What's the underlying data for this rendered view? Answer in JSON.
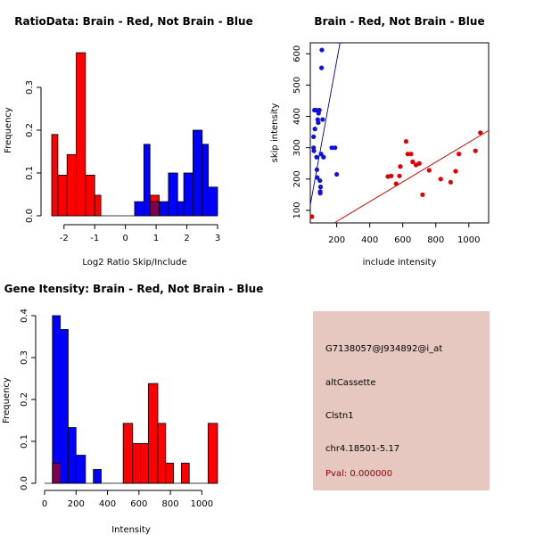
{
  "colors": {
    "red": "#ff0000",
    "blue": "#0000ff",
    "overlap": "#80004d",
    "scatter_red": "#e00000",
    "scatter_blue": "#1010e0",
    "line_red": "#cc0000",
    "line_blue": "#00008b",
    "info_bg": "#e6c8c0",
    "pval": "#8b0000"
  },
  "chart_data": [
    {
      "type": "histogram",
      "title": "RatioData: Brain - Red, Not Brain - Blue",
      "xlabel": "Log2 Ratio Skip/Include",
      "ylabel": "Frequency",
      "xlim": [
        -2.4,
        3
      ],
      "ylim": [
        0,
        0.4
      ],
      "xticks": [
        -2,
        -1,
        0,
        1,
        2,
        3
      ],
      "yticks": [
        0.0,
        0.1,
        0.2,
        0.3
      ],
      "series": [
        {
          "name": "Brain",
          "color": "red",
          "bins": [
            {
              "x0": -2.4,
              "x1": -2.2,
              "y": 0.19
            },
            {
              "x0": -2.2,
              "x1": -1.9,
              "y": 0.095
            },
            {
              "x0": -1.9,
              "x1": -1.6,
              "y": 0.143
            },
            {
              "x0": -1.6,
              "x1": -1.3,
              "y": 0.381
            },
            {
              "x0": -1.3,
              "x1": -1.0,
              "y": 0.095
            },
            {
              "x0": -1.0,
              "x1": -0.8,
              "y": 0.048
            },
            {
              "x0": 0.8,
              "x1": 1.1,
              "y": 0.048
            }
          ]
        },
        {
          "name": "Not Brain",
          "color": "blue",
          "bins": [
            {
              "x0": 0.3,
              "x1": 0.6,
              "y": 0.033
            },
            {
              "x0": 0.6,
              "x1": 0.8,
              "y": 0.167
            },
            {
              "x0": 0.8,
              "x1": 1.1,
              "y": 0.033
            },
            {
              "x0": 1.1,
              "x1": 1.4,
              "y": 0.033
            },
            {
              "x0": 1.4,
              "x1": 1.7,
              "y": 0.1
            },
            {
              "x0": 1.7,
              "x1": 1.9,
              "y": 0.033
            },
            {
              "x0": 1.9,
              "x1": 2.2,
              "y": 0.1
            },
            {
              "x0": 2.2,
              "x1": 2.5,
              "y": 0.2
            },
            {
              "x0": 2.5,
              "x1": 2.7,
              "y": 0.167
            },
            {
              "x0": 2.7,
              "x1": 3.0,
              "y": 0.067
            }
          ]
        }
      ]
    },
    {
      "type": "scatter",
      "title": "Brain - Red, Not Brain - Blue",
      "xlabel": "include intensity",
      "ylabel": "skip intensity",
      "xlim": [
        40,
        1120
      ],
      "ylim": [
        60,
        635
      ],
      "xticks": [
        200,
        400,
        600,
        800,
        1000
      ],
      "yticks": [
        100,
        200,
        300,
        400,
        500,
        600
      ],
      "series": [
        {
          "name": "Brain",
          "color": "scatter_red",
          "points": [
            [
              50,
              80
            ],
            [
              510,
              208
            ],
            [
              530,
              210
            ],
            [
              560,
              185
            ],
            [
              580,
              210
            ],
            [
              585,
              240
            ],
            [
              620,
              320
            ],
            [
              630,
              280
            ],
            [
              650,
              280
            ],
            [
              660,
              255
            ],
            [
              680,
              245
            ],
            [
              700,
              250
            ],
            [
              720,
              150
            ],
            [
              760,
              228
            ],
            [
              830,
              200
            ],
            [
              890,
              190
            ],
            [
              920,
              225
            ],
            [
              940,
              280
            ],
            [
              1040,
              290
            ],
            [
              1070,
              348
            ]
          ],
          "fit_line": {
            "x": [
              185,
              1120
            ],
            "y": [
              60,
              355
            ]
          }
        },
        {
          "name": "Not Brain",
          "color": "scatter_blue",
          "points": [
            [
              60,
              335
            ],
            [
              60,
              300
            ],
            [
              62,
              290
            ],
            [
              65,
              420
            ],
            [
              68,
              360
            ],
            [
              75,
              420
            ],
            [
              78,
              270
            ],
            [
              80,
              230
            ],
            [
              82,
              205
            ],
            [
              85,
              390
            ],
            [
              88,
              380
            ],
            [
              90,
              410
            ],
            [
              95,
              420
            ],
            [
              98,
              195
            ],
            [
              100,
              155
            ],
            [
              100,
              160
            ],
            [
              102,
              175
            ],
            [
              105,
              280
            ],
            [
              108,
              555
            ],
            [
              110,
              612
            ],
            [
              115,
              390
            ],
            [
              120,
              270
            ],
            [
              170,
              300
            ],
            [
              190,
              300
            ],
            [
              200,
              215
            ]
          ],
          "fit_line": {
            "x": [
              20,
              220
            ],
            "y": [
              60,
              635
            ]
          }
        }
      ]
    },
    {
      "type": "histogram",
      "title": "Gene Itensity: Brain - Red, Not Brain - Blue",
      "xlabel": "Intensity",
      "ylabel": "Frequency",
      "xlim": [
        0,
        1100
      ],
      "ylim": [
        0,
        0.4
      ],
      "xticks": [
        0,
        200,
        400,
        600,
        800,
        1000
      ],
      "yticks": [
        0.0,
        0.1,
        0.2,
        0.3,
        0.4
      ],
      "series": [
        {
          "name": "Brain",
          "color": "red",
          "bins": [
            {
              "x0": 50,
              "x1": 100,
              "y": 0.048
            },
            {
              "x0": 500,
              "x1": 560,
              "y": 0.143
            },
            {
              "x0": 560,
              "x1": 610,
              "y": 0.095
            },
            {
              "x0": 610,
              "x1": 660,
              "y": 0.095
            },
            {
              "x0": 660,
              "x1": 720,
              "y": 0.238
            },
            {
              "x0": 720,
              "x1": 770,
              "y": 0.143
            },
            {
              "x0": 770,
              "x1": 820,
              "y": 0.048
            },
            {
              "x0": 870,
              "x1": 920,
              "y": 0.048
            },
            {
              "x0": 1040,
              "x1": 1100,
              "y": 0.143
            }
          ]
        },
        {
          "name": "Not Brain",
          "color": "blue",
          "bins": [
            {
              "x0": 50,
              "x1": 100,
              "y": 0.4
            },
            {
              "x0": 100,
              "x1": 150,
              "y": 0.367
            },
            {
              "x0": 150,
              "x1": 200,
              "y": 0.133
            },
            {
              "x0": 200,
              "x1": 260,
              "y": 0.067
            },
            {
              "x0": 310,
              "x1": 360,
              "y": 0.033
            }
          ]
        }
      ]
    }
  ],
  "info": {
    "probe_id": "G7138057@J934892@i_at",
    "event_type": "altCassette",
    "gene": "Clstn1",
    "location": "chr4.18501-5.17",
    "pval": "Pval: 0.000000"
  }
}
